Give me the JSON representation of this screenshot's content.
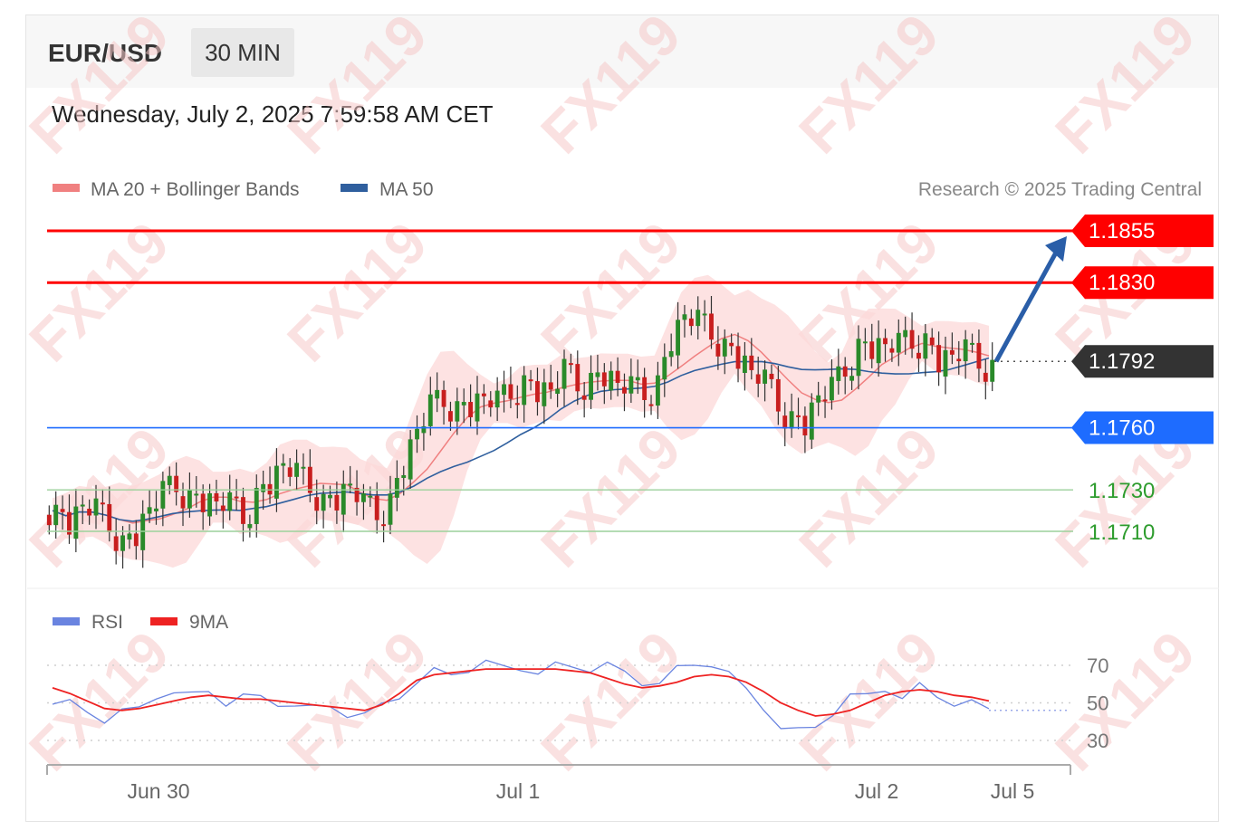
{
  "header": {
    "pair": "EUR/USD",
    "timeframe": "30 MIN",
    "date": "Wednesday, July 2, 2025 7:59:58 AM CET"
  },
  "legend": {
    "ma20": "MA 20 + Bollinger Bands",
    "ma50": "MA 50",
    "credit": "Research © 2025 Trading Central"
  },
  "rsi_legend": {
    "rsi": "RSI",
    "ma9": "9MA"
  },
  "watermark": "FX119",
  "colors": {
    "resistance": "#ff0000",
    "support": "#1e6cff",
    "current": "#333333",
    "target_green": "#2e9c2e",
    "ma20": "#f08080",
    "ma50": "#2f5f9e",
    "band": "#fcd8d8",
    "arrow": "#2a5ea8",
    "rsi": "#6a84e0",
    "rsi_ma": "#ee2222"
  },
  "chart_data": [
    {
      "type": "candlestick",
      "title": "EUR/USD 30 MIN",
      "ylim": [
        1.167,
        1.1875
      ],
      "levels": [
        {
          "label": "1.1855",
          "value": 1.1855,
          "kind": "resistance"
        },
        {
          "label": "1.1830",
          "value": 1.183,
          "kind": "resistance"
        },
        {
          "label": "1.1792",
          "value": 1.1792,
          "kind": "current"
        },
        {
          "label": "1.1760",
          "value": 1.176,
          "kind": "support"
        },
        {
          "label": "1.1730",
          "value": 1.173,
          "kind": "target"
        },
        {
          "label": "1.1710",
          "value": 1.171,
          "kind": "target"
        }
      ],
      "close_path": [
        1.172,
        1.1715,
        1.1723,
        1.1719,
        1.1712,
        1.1705,
        1.171,
        1.1722,
        1.1728,
        1.1732,
        1.1727,
        1.1726,
        1.1724,
        1.1722,
        1.1716,
        1.1729,
        1.1735,
        1.1743,
        1.1736,
        1.1731,
        1.1725,
        1.1727,
        1.1733,
        1.1721,
        1.1718,
        1.1726,
        1.1745,
        1.176,
        1.177,
        1.1773,
        1.177,
        1.1772,
        1.1775,
        1.1771,
        1.1777,
        1.1783,
        1.1779,
        1.1778,
        1.1787,
        1.178,
        1.1784,
        1.1787,
        1.1781,
        1.1778,
        1.1776,
        1.1783,
        1.1805,
        1.1815,
        1.181,
        1.1805,
        1.18,
        1.1795,
        1.1787,
        1.1781,
        1.177,
        1.1765,
        1.1763,
        1.1776,
        1.1778,
        1.1788,
        1.1801,
        1.18,
        1.18,
        1.1799,
        1.1801,
        1.1803,
        1.1793,
        1.1795,
        1.1796,
        1.1791,
        1.179
      ],
      "annotation": "arrow from 1.1792 to 1.1855"
    },
    {
      "type": "line",
      "title": "RSI",
      "yticks": [
        "70",
        "50",
        "30"
      ],
      "ylim": [
        20,
        80
      ],
      "series": [
        {
          "name": "RSI",
          "values": [
            52,
            50,
            45,
            41,
            44,
            47,
            53,
            58,
            54,
            56,
            50,
            52,
            53,
            49,
            51,
            47,
            48,
            44,
            42,
            49,
            53,
            63,
            67,
            65,
            68,
            70,
            69,
            68,
            68,
            70,
            69,
            68,
            69,
            66,
            60,
            63,
            68,
            70,
            71,
            64,
            57,
            47,
            39,
            35,
            37,
            45,
            52,
            54,
            57,
            55,
            59,
            53,
            50,
            49,
            46
          ]
        },
        {
          "name": "9MA",
          "values": [
            58,
            55,
            51,
            47,
            46,
            47,
            49,
            51,
            53,
            54,
            53,
            52,
            52,
            51,
            50,
            49,
            48,
            47,
            46,
            49,
            55,
            62,
            65,
            66,
            67,
            68,
            68,
            68,
            68,
            68,
            67,
            66,
            63,
            60,
            58,
            59,
            61,
            64,
            65,
            64,
            61,
            56,
            50,
            46,
            43,
            44,
            46,
            50,
            54,
            56,
            57,
            56,
            54,
            53,
            51
          ]
        }
      ],
      "xtick_labels": [
        "Jun 30",
        "Jul 1",
        "Jul 2",
        "Jul 5"
      ]
    }
  ]
}
